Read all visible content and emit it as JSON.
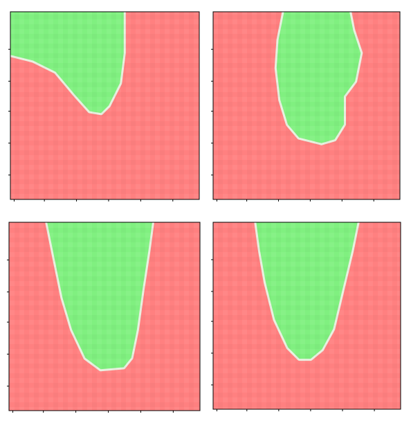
{
  "figure": {
    "background": "#ffffff"
  },
  "colors": {
    "red": "#ff8080",
    "green": "#80f080",
    "edge": "#e8f0e0",
    "axis": "#000000"
  },
  "chart_data": [
    {
      "type": "heatmap",
      "title": "",
      "xlabel": "",
      "ylabel": "",
      "xlim": [
        0,
        1
      ],
      "ylim": [
        0,
        1
      ],
      "grid": false,
      "classes": [
        "red",
        "green"
      ],
      "green_region": [
        [
          0.0,
          1.0
        ],
        [
          0.6,
          1.0
        ],
        [
          0.6,
          0.78
        ],
        [
          0.58,
          0.62
        ],
        [
          0.52,
          0.5
        ],
        [
          0.48,
          0.46
        ],
        [
          0.42,
          0.47
        ],
        [
          0.34,
          0.56
        ],
        [
          0.24,
          0.68
        ],
        [
          0.12,
          0.74
        ],
        [
          0.04,
          0.76
        ],
        [
          0.0,
          0.77
        ]
      ]
    },
    {
      "type": "heatmap",
      "title": "",
      "xlabel": "",
      "ylabel": "",
      "xlim": [
        0,
        1
      ],
      "ylim": [
        0,
        1
      ],
      "grid": false,
      "classes": [
        "red",
        "green"
      ],
      "green_region": [
        [
          0.38,
          1.0
        ],
        [
          0.73,
          1.0
        ],
        [
          0.75,
          0.9
        ],
        [
          0.79,
          0.78
        ],
        [
          0.76,
          0.63
        ],
        [
          0.7,
          0.55
        ],
        [
          0.7,
          0.4
        ],
        [
          0.65,
          0.32
        ],
        [
          0.58,
          0.3
        ],
        [
          0.46,
          0.33
        ],
        [
          0.4,
          0.4
        ],
        [
          0.36,
          0.53
        ],
        [
          0.34,
          0.7
        ],
        [
          0.35,
          0.85
        ]
      ]
    },
    {
      "type": "heatmap",
      "title": "",
      "xlabel": "",
      "ylabel": "",
      "xlim": [
        0,
        1
      ],
      "ylim": [
        0,
        1
      ],
      "grid": false,
      "classes": [
        "red",
        "green"
      ],
      "green_region": [
        [
          0.2,
          1.0
        ],
        [
          0.75,
          1.0
        ],
        [
          0.73,
          0.85
        ],
        [
          0.7,
          0.65
        ],
        [
          0.67,
          0.43
        ],
        [
          0.64,
          0.28
        ],
        [
          0.6,
          0.23
        ],
        [
          0.48,
          0.22
        ],
        [
          0.4,
          0.28
        ],
        [
          0.33,
          0.43
        ],
        [
          0.28,
          0.6
        ],
        [
          0.24,
          0.8
        ]
      ]
    },
    {
      "type": "heatmap",
      "title": "",
      "xlabel": "",
      "ylabel": "",
      "xlim": [
        0,
        1
      ],
      "ylim": [
        0,
        1
      ],
      "grid": false,
      "classes": [
        "red",
        "green"
      ],
      "green_region": [
        [
          0.23,
          1.0
        ],
        [
          0.77,
          1.0
        ],
        [
          0.74,
          0.85
        ],
        [
          0.68,
          0.6
        ],
        [
          0.64,
          0.43
        ],
        [
          0.58,
          0.32
        ],
        [
          0.52,
          0.27
        ],
        [
          0.46,
          0.27
        ],
        [
          0.4,
          0.33
        ],
        [
          0.33,
          0.48
        ],
        [
          0.28,
          0.68
        ],
        [
          0.25,
          0.85
        ]
      ]
    }
  ]
}
